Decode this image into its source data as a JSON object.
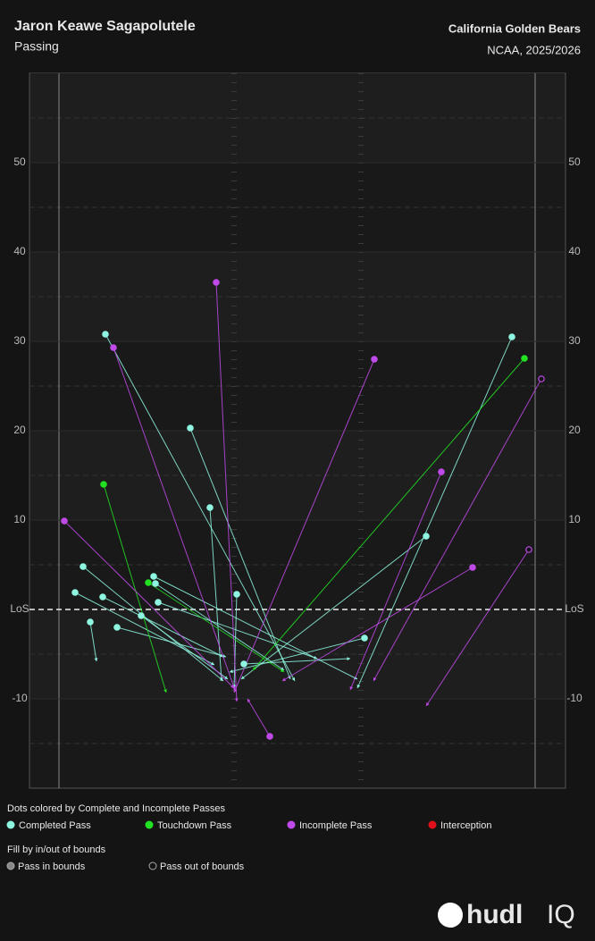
{
  "chart_data": {
    "type": "pass",
    "title": "Jaron Keawe Sagapolutele",
    "subtitle": "Passing",
    "team": "California Golden Bears",
    "competition": "NCAA, 2025/2026",
    "xlim": [
      -3.3,
      56.7
    ],
    "ylim": [
      -20,
      60
    ],
    "yticks": [
      -10,
      {
        "value": 0,
        "label": "LoS"
      },
      10,
      20,
      30,
      40,
      50
    ],
    "legend_title": "Dots colored by Complete and Incomplete Passes",
    "fill_legend": {
      "title": "Fill by in/out of bounds",
      "entries": [
        "Pass in bounds",
        "Pass out of bounds"
      ]
    },
    "series": [
      {
        "name": "Completed Pass",
        "color": "#8ef5e0",
        "x": [
          5.2,
          14.7,
          16.9,
          19.9,
          2.7,
          1.8,
          4.9,
          3.5,
          6.5,
          9.2,
          10.6,
          10.8,
          11.1,
          20.7,
          34.2,
          41.1,
          50.7
        ],
        "y": [
          30.8,
          20.3,
          11.4,
          1.7,
          4.8,
          1.9,
          1.4,
          -1.4,
          -2.0,
          -0.7,
          3.7,
          2.9,
          0.8,
          -6.1,
          -3.2,
          8.2,
          30.5
        ],
        "from_x": [
          26.4,
          25.9,
          18.2,
          19.6,
          18.4,
          17.4,
          18.4,
          4.2,
          18.7,
          18.9,
          33.4,
          25.2,
          28.9,
          32.6,
          19.1,
          20.4,
          33.4
        ],
        "from_y": [
          -8.0,
          -7.8,
          -8.0,
          -8.8,
          -8.0,
          -6.2,
          -5.3,
          -5.8,
          -5.3,
          -7.8,
          -7.8,
          -6.8,
          -5.5,
          -5.5,
          -7.0,
          -7.8,
          -8.8
        ],
        "in_bounds": [
          true,
          true,
          true,
          true,
          true,
          true,
          true,
          true,
          true,
          true,
          true,
          true,
          true,
          true,
          true,
          true,
          true
        ]
      },
      {
        "name": "Touchdown Pass",
        "color": "#22e022",
        "x": [
          5.0,
          10.0,
          52.1
        ],
        "y": [
          14.0,
          3.0,
          28.1
        ],
        "from_x": [
          12.0,
          25.2,
          21.7
        ],
        "from_y": [
          -9.3,
          -7.0,
          -6.8
        ],
        "in_bounds": [
          true,
          true,
          true
        ]
      },
      {
        "name": "Incomplete Pass",
        "color": "#c04ae8",
        "x": [
          0.6,
          6.1,
          17.6,
          35.3,
          42.8,
          46.3,
          23.6,
          54.0,
          52.6
        ],
        "y": [
          9.9,
          29.3,
          36.6,
          28.0,
          15.4,
          4.7,
          -14.2,
          25.8,
          6.7
        ],
        "from_x": [
          19.6,
          19.7,
          19.9,
          19.6,
          32.6,
          25.0,
          21.1,
          35.2,
          41.1
        ],
        "from_y": [
          -8.8,
          -9.0,
          -10.3,
          -9.3,
          -9.0,
          -8.0,
          -10.0,
          -8.0,
          -10.8
        ],
        "in_bounds": [
          true,
          true,
          true,
          true,
          true,
          true,
          true,
          false,
          false
        ]
      },
      {
        "name": "Interception",
        "color": "#e0101a",
        "x": [],
        "y": [],
        "from_x": [],
        "from_y": [],
        "in_bounds": []
      }
    ],
    "logo": {
      "name": "hudl",
      "suffix": "IQ"
    }
  }
}
